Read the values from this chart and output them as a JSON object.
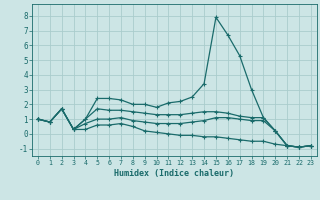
{
  "title": "",
  "xlabel": "Humidex (Indice chaleur)",
  "ylabel": "",
  "bg_color": "#cce5e5",
  "grid_color": "#aacccc",
  "line_color": "#1a6b6b",
  "xlim": [
    -0.5,
    23.5
  ],
  "ylim": [
    -1.5,
    8.8
  ],
  "yticks": [
    -1,
    0,
    1,
    2,
    3,
    4,
    5,
    6,
    7,
    8
  ],
  "xticks": [
    0,
    1,
    2,
    3,
    4,
    5,
    6,
    7,
    8,
    9,
    10,
    11,
    12,
    13,
    14,
    15,
    16,
    17,
    18,
    19,
    20,
    21,
    22,
    23
  ],
  "line1_x": [
    0,
    1,
    2,
    3,
    4,
    5,
    6,
    7,
    8,
    9,
    10,
    11,
    12,
    13,
    14,
    15,
    16,
    17,
    18,
    19,
    20,
    21,
    22,
    23
  ],
  "line1_y": [
    1.0,
    0.8,
    1.7,
    0.3,
    1.0,
    2.4,
    2.4,
    2.3,
    2.0,
    2.0,
    1.8,
    2.1,
    2.2,
    2.5,
    3.4,
    7.9,
    6.7,
    5.3,
    3.0,
    1.1,
    0.2,
    -0.8,
    -0.9,
    -0.8
  ],
  "line2_x": [
    0,
    1,
    2,
    3,
    4,
    5,
    6,
    7,
    8,
    9,
    10,
    11,
    12,
    13,
    14,
    15,
    16,
    17,
    18,
    19,
    20,
    21,
    22,
    23
  ],
  "line2_y": [
    1.0,
    0.8,
    1.7,
    0.3,
    1.0,
    1.7,
    1.6,
    1.6,
    1.5,
    1.4,
    1.3,
    1.3,
    1.3,
    1.4,
    1.5,
    1.5,
    1.4,
    1.2,
    1.1,
    1.1,
    0.2,
    -0.8,
    -0.9,
    -0.8
  ],
  "line3_x": [
    0,
    1,
    2,
    3,
    4,
    5,
    6,
    7,
    8,
    9,
    10,
    11,
    12,
    13,
    14,
    15,
    16,
    17,
    18,
    19,
    20,
    21,
    22,
    23
  ],
  "line3_y": [
    1.0,
    0.8,
    1.7,
    0.3,
    0.3,
    0.6,
    0.6,
    0.7,
    0.5,
    0.2,
    0.1,
    0.0,
    -0.1,
    -0.1,
    -0.2,
    -0.2,
    -0.3,
    -0.4,
    -0.5,
    -0.5,
    -0.7,
    -0.8,
    -0.9,
    -0.8
  ],
  "line4_x": [
    0,
    1,
    2,
    3,
    4,
    5,
    6,
    7,
    8,
    9,
    10,
    11,
    12,
    13,
    14,
    15,
    16,
    17,
    18,
    19,
    20,
    21,
    22,
    23
  ],
  "line4_y": [
    1.0,
    0.8,
    1.7,
    0.3,
    0.7,
    1.0,
    1.0,
    1.1,
    0.9,
    0.8,
    0.7,
    0.7,
    0.7,
    0.8,
    0.9,
    1.1,
    1.1,
    1.0,
    0.9,
    0.9,
    0.2,
    -0.8,
    -0.9,
    -0.8
  ]
}
